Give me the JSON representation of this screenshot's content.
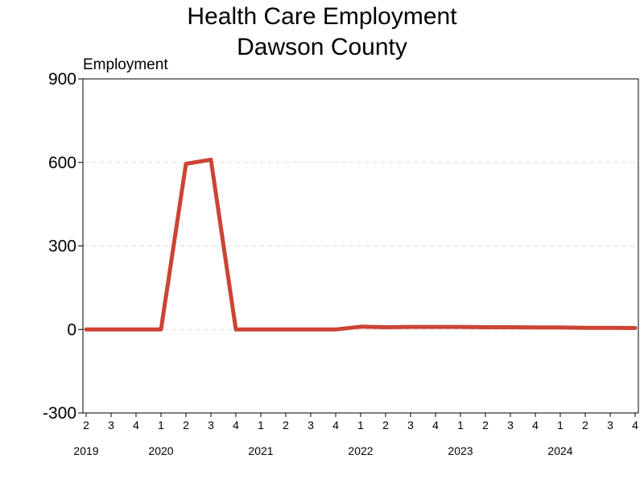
{
  "chart_data": {
    "type": "line",
    "title": [
      "Health Care Employment",
      "Dawson County"
    ],
    "ylabel": "Employment",
    "xlabel": "",
    "ylim": [
      -300,
      900
    ],
    "yticks": [
      -300,
      0,
      300,
      600,
      900
    ],
    "grid": "horizontal dashed",
    "x": [
      "2019 Q2",
      "2019 Q3",
      "2019 Q4",
      "2020 Q1",
      "2020 Q2",
      "2020 Q3",
      "2020 Q4",
      "2021 Q1",
      "2021 Q2",
      "2021 Q3",
      "2021 Q4",
      "2022 Q1",
      "2022 Q2",
      "2022 Q3",
      "2022 Q4",
      "2023 Q1",
      "2023 Q2",
      "2023 Q3",
      "2023 Q4",
      "2024 Q1",
      "2024 Q2",
      "2024 Q3",
      "2024 Q4"
    ],
    "quarter_labels": [
      "2",
      "3",
      "4",
      "1",
      "2",
      "3",
      "4",
      "1",
      "2",
      "3",
      "4",
      "1",
      "2",
      "3",
      "4",
      "1",
      "2",
      "3",
      "4",
      "1",
      "2",
      "3",
      "4"
    ],
    "year_labels": [
      {
        "label": "2019",
        "index": 0
      },
      {
        "label": "2020",
        "index": 3
      },
      {
        "label": "2021",
        "index": 7
      },
      {
        "label": "2022",
        "index": 11
      },
      {
        "label": "2023",
        "index": 15
      },
      {
        "label": "2024",
        "index": 19
      }
    ],
    "series": [
      {
        "values": [
          0,
          0,
          0,
          0,
          595,
          610,
          0,
          0,
          0,
          0,
          0,
          10,
          8,
          9,
          9,
          9,
          8,
          8,
          7,
          7,
          6,
          6,
          5
        ]
      }
    ],
    "colors": {
      "line": "#cc4433",
      "grid": "#dddddd",
      "axis": "#000000"
    }
  }
}
